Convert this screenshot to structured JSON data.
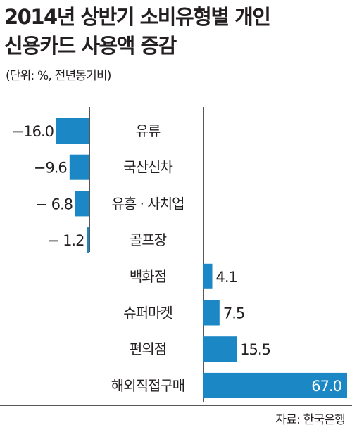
{
  "header": {
    "title_line1": "2014년 상반기 소비유형별 개인",
    "title_line2": "신용카드 사용액 증감",
    "subtitle": "(단위: %, 전년동기비)"
  },
  "footer": {
    "source": "자료: 한국은행"
  },
  "colors": {
    "bar": "#1b87c5",
    "axis": "#231f20",
    "text": "#231f20"
  },
  "chart_data": {
    "type": "bar",
    "orientation": "horizontal",
    "title": "2014년 상반기 소비유형별 개인 신용카드 사용액 증감",
    "subtitle": "(단위: %, 전년동기비)",
    "categories": [
      "유류",
      "국산신차",
      "유흥 · 사치업",
      "골프장",
      "백화점",
      "슈퍼마켓",
      "편의점",
      "해외직접구매"
    ],
    "values": [
      -16.0,
      -9.6,
      -6.8,
      -1.2,
      4.1,
      7.5,
      15.5,
      67.0
    ],
    "value_labels": [
      "−16.0",
      "−9.6",
      "− 6.8",
      "− 1.2",
      "4.1",
      "7.5",
      "15.5",
      "67.0"
    ],
    "xlabel": "",
    "ylabel": "",
    "grid": false,
    "legend": "none"
  }
}
